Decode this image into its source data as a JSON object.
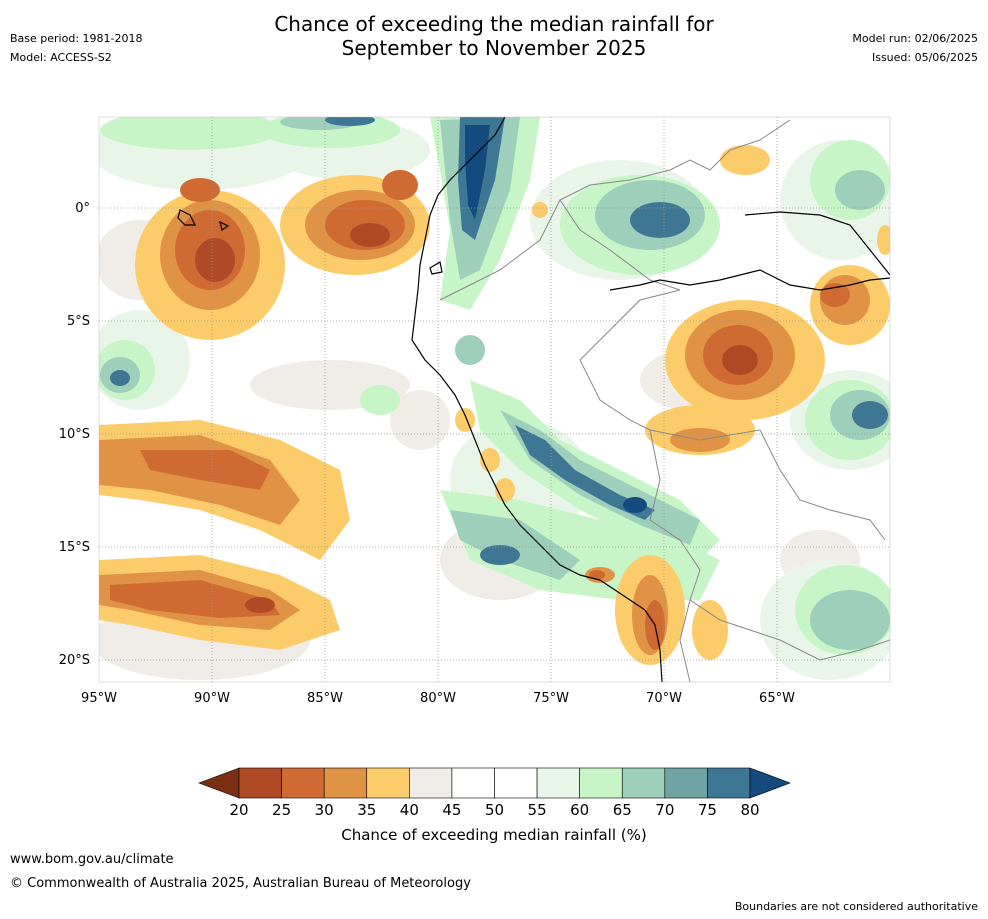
{
  "header": {
    "title_line1": "Chance of exceeding the median rainfall for",
    "title_line2": "September to November 2025",
    "base_period": "Base period: 1981-2018",
    "model": "Model: ACCESS-S2",
    "model_run": "Model run: 02/06/2025",
    "issued": "Issued: 05/06/2025"
  },
  "map": {
    "lat_labels": [
      "0°",
      "5°S",
      "10°S",
      "15°S",
      "20°S"
    ],
    "lon_labels": [
      "95°W",
      "90°W",
      "85°W",
      "80°W",
      "75°W",
      "70°W",
      "65°W"
    ],
    "region": "western South America",
    "colors": {
      "dry_strong": "#7a2e12",
      "dry_mid": "#b04a26",
      "dry_light": "#cf6a33",
      "neutral_dry": "#f0ede8",
      "neutral": "#ffffff",
      "wet_light": "#c8f5c8",
      "wet_mid": "#9dcfba",
      "wet_strong": "#3e7794",
      "wet_extreme": "#144b7e"
    }
  },
  "colorbar": {
    "ticks": [
      "20",
      "25",
      "30",
      "35",
      "40",
      "45",
      "50",
      "55",
      "60",
      "65",
      "70",
      "75",
      "80"
    ],
    "colors": [
      "#7a2e12",
      "#b04a26",
      "#cf6a33",
      "#e09245",
      "#fccc6b",
      "#f0ede8",
      "#ffffff",
      "#ffffff",
      "#eaf5ea",
      "#c8f5c8",
      "#9dcfba",
      "#6fa3a4",
      "#3e7794",
      "#144b7e"
    ],
    "label": "Chance of exceeding median rainfall (%)"
  },
  "footer": {
    "url": "www.bom.gov.au/climate",
    "copyright": "© Commonwealth of Australia 2025, Australian Bureau of Meteorology",
    "disclaimer": "Boundaries are not considered authoritative"
  }
}
